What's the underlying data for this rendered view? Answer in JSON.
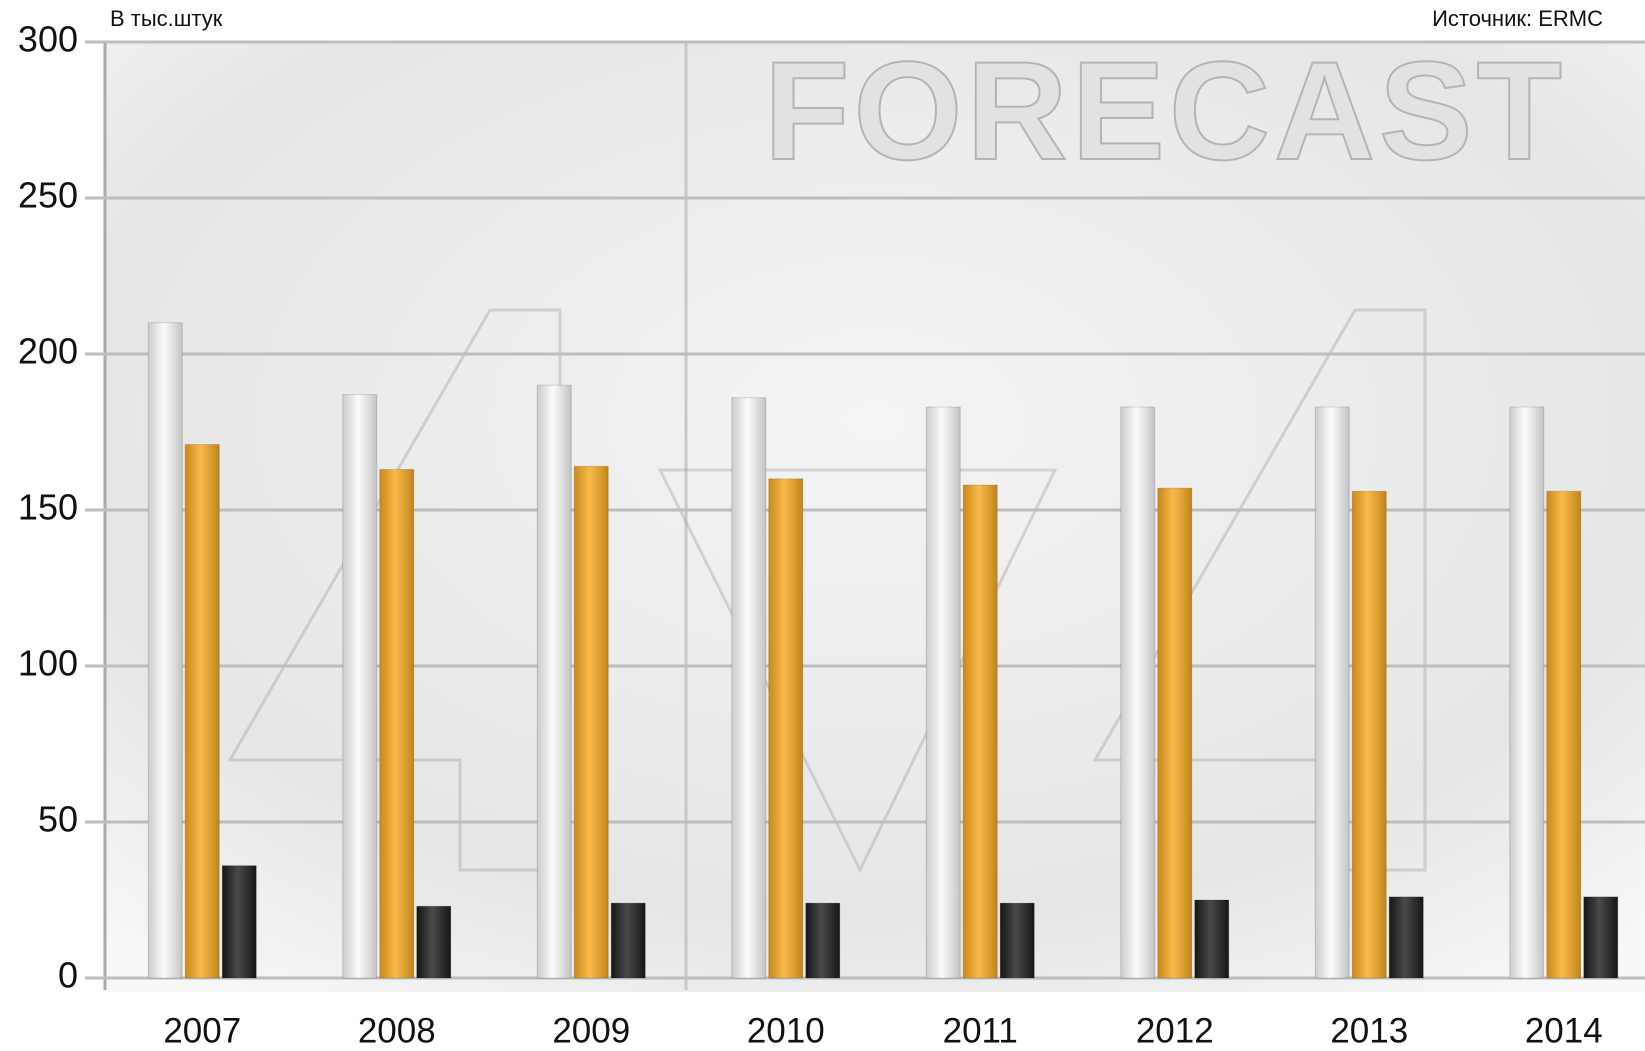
{
  "chart_data": {
    "type": "bar",
    "unit_note": "В тыс.штук",
    "source": "Источник: ERMC",
    "watermark": "FORECAST",
    "categories": [
      "2007",
      "2008",
      "2009",
      "2010",
      "2011",
      "2012",
      "2013",
      "2014"
    ],
    "series": [
      {
        "color": "#fafafa",
        "values": [
          210,
          187,
          190,
          186,
          183,
          183,
          183,
          183
        ]
      },
      {
        "color": "#f7a91e",
        "values": [
          171,
          163,
          164,
          160,
          158,
          157,
          156,
          156
        ]
      },
      {
        "color": "#1c1c1c",
        "values": [
          36,
          23,
          24,
          24,
          24,
          25,
          26,
          26
        ]
      }
    ],
    "ylim": [
      0,
      300
    ],
    "yticks": [
      0,
      50,
      100,
      150,
      200,
      250,
      300
    ],
    "grid": true
  }
}
